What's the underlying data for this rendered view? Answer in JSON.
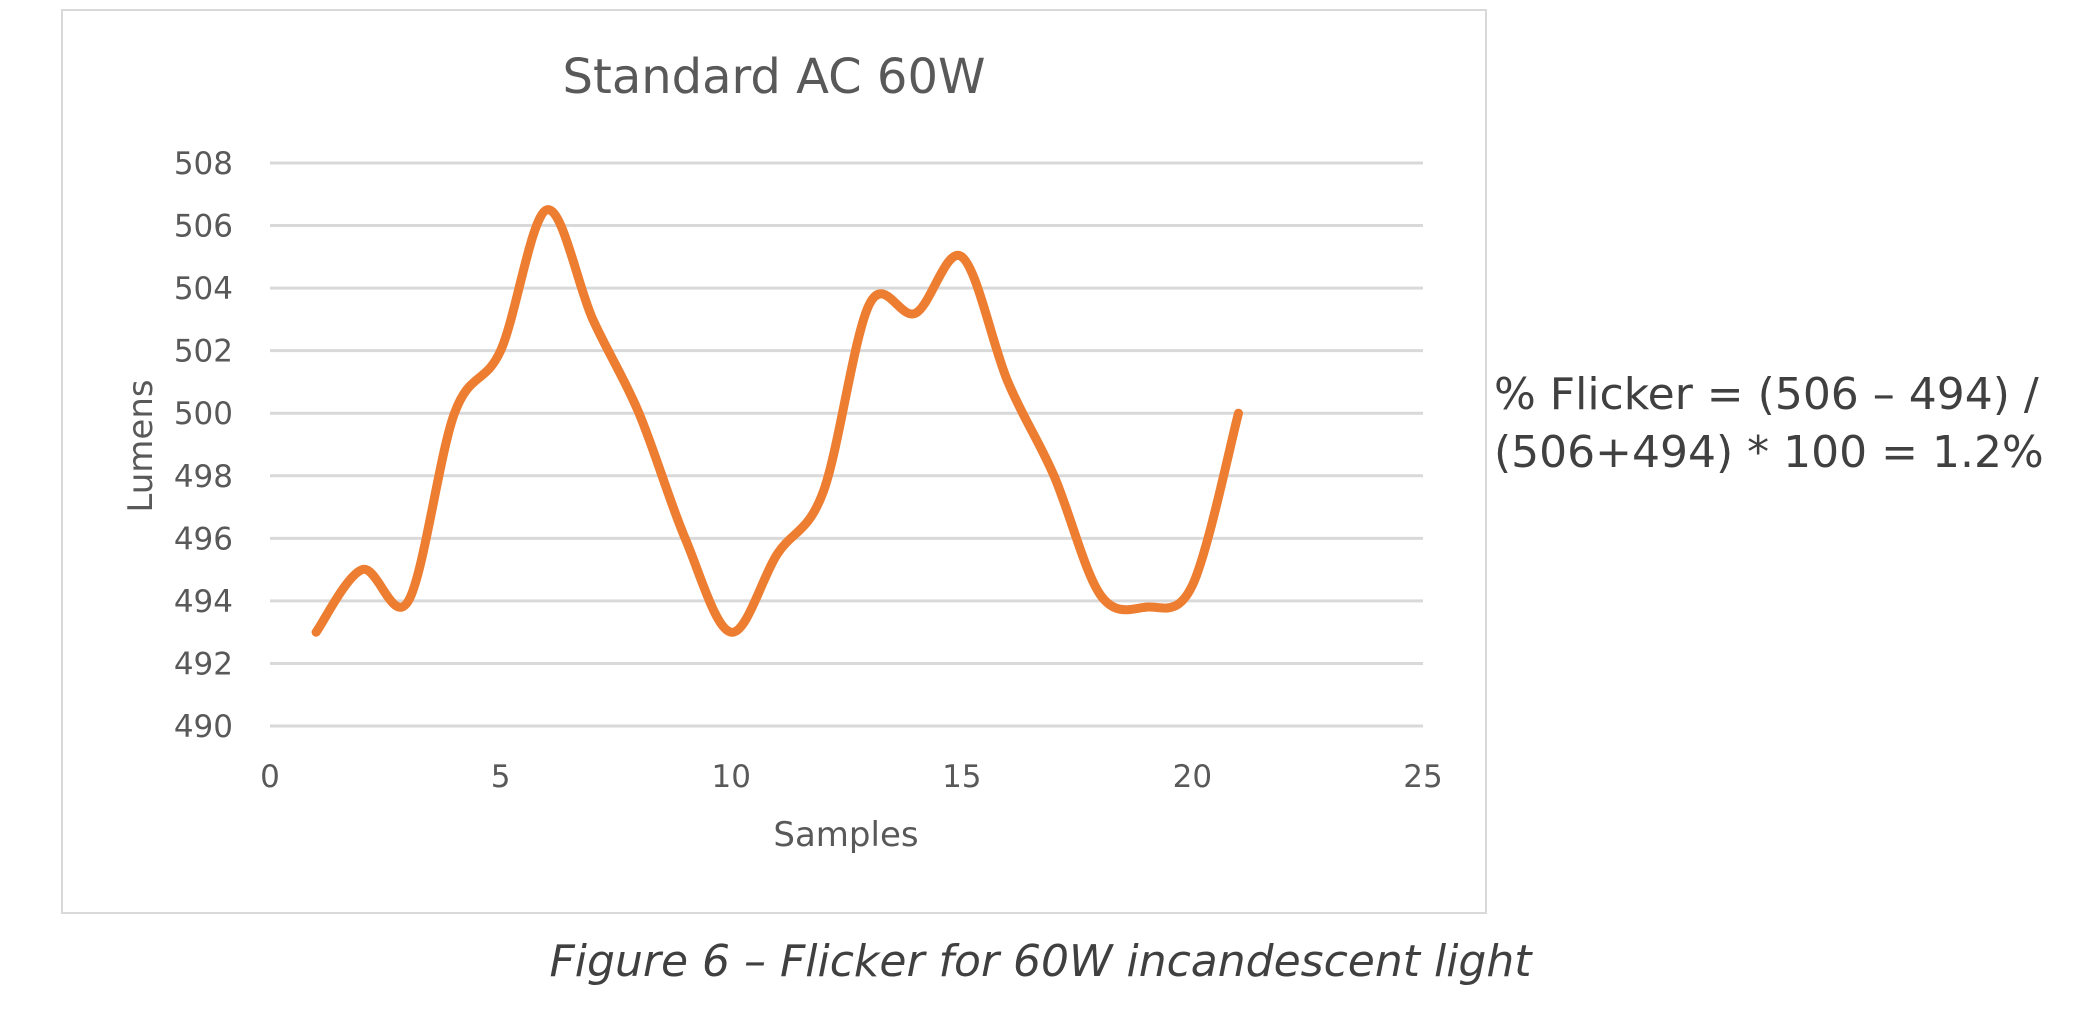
{
  "chart_data": {
    "type": "line",
    "title": "Standard AC 60W",
    "xlabel": "Samples",
    "ylabel": "Lumens",
    "xlim": [
      0,
      25
    ],
    "ylim": [
      490,
      508
    ],
    "xticks": [
      0,
      5,
      10,
      15,
      20,
      25
    ],
    "yticks": [
      490,
      492,
      494,
      496,
      498,
      500,
      502,
      504,
      506,
      508
    ],
    "grid": "horizontal",
    "legend": "none",
    "series": [
      {
        "color": "#ED7D31",
        "x": [
          1,
          2,
          3,
          4,
          5,
          6,
          7,
          8,
          9,
          10,
          11,
          12,
          13,
          14,
          15,
          16,
          17,
          18,
          19,
          20,
          21
        ],
        "y": [
          493,
          495,
          494,
          500,
          502,
          506.5,
          503,
          500,
          496,
          493,
          495.5,
          497.5,
          503.5,
          503.2,
          505,
          501,
          498,
          494.2,
          493.8,
          494.5,
          500
        ]
      }
    ]
  },
  "annotation": {
    "line1": "% Flicker = (506 – 494) /",
    "line2": "(506+494) * 100 = 1.2%"
  },
  "caption": "Figure 6 – Flicker for 60W incandescent light"
}
